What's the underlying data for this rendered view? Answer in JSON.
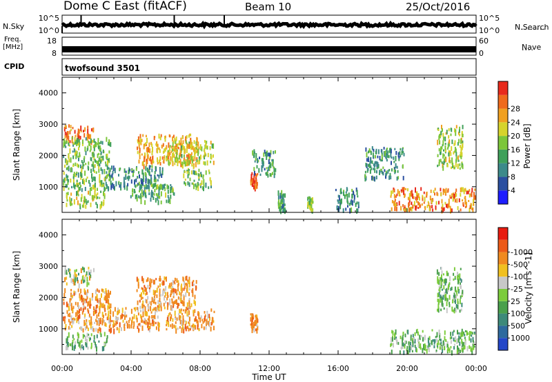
{
  "header": {
    "station": "Dome C East (fitACF)",
    "beam": "Beam 10",
    "date": "25/Oct/2016"
  },
  "side_labels": {
    "nsky": "N.Sky",
    "nsearch": "N.Search",
    "freq_line1": "Freq.",
    "freq_line2": "[MHz]",
    "nave": "Nave",
    "cpid": "CPID"
  },
  "chart_data": [
    {
      "type": "line",
      "name": "noise-panel",
      "left_ticks": [
        "10^5",
        "10^0"
      ],
      "right_ticks": [
        "10^5",
        "10^0"
      ],
      "ylabel_left": "N.Sky",
      "ylabel_right": "N.Search"
    },
    {
      "type": "line",
      "name": "freq-nave-panel",
      "left_ticks": [
        18,
        8
      ],
      "right_ticks": [
        60,
        0
      ],
      "ylabel_left": "Freq. [MHz]",
      "ylabel_right": "Nave",
      "freq_approx_mhz": 10.2
    },
    {
      "type": "table",
      "name": "cpid-panel",
      "program": "twofsound 3501"
    },
    {
      "type": "heatmap",
      "name": "power-panel",
      "ylabel": "Slant Range [km]",
      "yticks": [
        1000,
        2000,
        3000,
        4000
      ],
      "ylim": [
        180,
        4500
      ],
      "xlim_hours": [
        0,
        24
      ],
      "colorbar_label": "Power [dB]",
      "colorbar_ticks": [
        "4",
        "8",
        "12",
        "16",
        "20",
        "24",
        "28"
      ],
      "colorbar_colors": [
        "#1d1dff",
        "#2a4fa0",
        "#3c8a8a",
        "#3fa05a",
        "#7cc63a",
        "#d6d32c",
        "#f0a020",
        "#ef6a1c",
        "#e82a1c"
      ],
      "echo_regions": [
        {
          "t": [
            0.1,
            1.8
          ],
          "r": [
            2450,
            3000
          ],
          "intensity": 0.85
        },
        {
          "t": [
            0.0,
            2.8
          ],
          "r": [
            950,
            2600
          ],
          "intensity": 0.45
        },
        {
          "t": [
            0.2,
            2.5
          ],
          "r": [
            420,
            900
          ],
          "intensity": 0.55
        },
        {
          "t": [
            2.5,
            5.8
          ],
          "r": [
            1000,
            1700
          ],
          "intensity": 0.3
        },
        {
          "t": [
            3.8,
            6.5
          ],
          "r": [
            550,
            1100
          ],
          "intensity": 0.4
        },
        {
          "t": [
            4.3,
            7.8
          ],
          "r": [
            1700,
            2700
          ],
          "intensity": 0.75
        },
        {
          "t": [
            6.0,
            8.8
          ],
          "r": [
            1800,
            2500
          ],
          "intensity": 0.6
        },
        {
          "t": [
            7.0,
            8.6
          ],
          "r": [
            1000,
            1600
          ],
          "intensity": 0.45
        },
        {
          "t": [
            10.9,
            11.3
          ],
          "r": [
            1000,
            1500
          ],
          "intensity": 0.95
        },
        {
          "t": [
            11.0,
            12.4
          ],
          "r": [
            1400,
            2200
          ],
          "intensity": 0.35
        },
        {
          "t": [
            12.5,
            12.9
          ],
          "r": [
            250,
            900
          ],
          "intensity": 0.35
        },
        {
          "t": [
            14.2,
            14.5
          ],
          "r": [
            300,
            700
          ],
          "intensity": 0.5
        },
        {
          "t": [
            15.8,
            17.2
          ],
          "r": [
            300,
            1000
          ],
          "intensity": 0.3
        },
        {
          "t": [
            19.0,
            24.0
          ],
          "r": [
            300,
            1000
          ],
          "intensity": 0.8
        },
        {
          "t": [
            21.7,
            23.2
          ],
          "r": [
            1600,
            3000
          ],
          "intensity": 0.55
        },
        {
          "t": [
            17.5,
            19.8
          ],
          "r": [
            1300,
            2300
          ],
          "intensity": 0.3
        }
      ]
    },
    {
      "type": "heatmap",
      "name": "velocity-panel",
      "ylabel": "Slant Range [km]",
      "yticks": [
        1000,
        2000,
        3000,
        4000
      ],
      "ylim": [
        180,
        4500
      ],
      "xlim_hours": [
        0,
        24
      ],
      "xticks": [
        "00:00",
        "04:00",
        "08:00",
        "12:00",
        "16:00",
        "20:00",
        "00:00"
      ],
      "xlabel": "Time UT",
      "colorbar_label": "Velocity [m s^-1]",
      "colorbar_ticks": [
        "1000",
        "500",
        "100",
        "25",
        "-25",
        "-100",
        "-500",
        "-1000"
      ],
      "colorbar_colors": [
        "#2346c8",
        "#2e6a9e",
        "#3d8a7a",
        "#4aa04c",
        "#7ccc3c",
        "#c8c8c8",
        "#f0c020",
        "#f08a20",
        "#ec5a18",
        "#e81c10"
      ],
      "echo_regions": [
        {
          "t": [
            0.1,
            1.8
          ],
          "r": [
            2450,
            3000
          ],
          "vel": "mixed"
        },
        {
          "t": [
            0.0,
            2.8
          ],
          "r": [
            1000,
            2300
          ],
          "vel": "negative"
        },
        {
          "t": [
            0.2,
            2.6
          ],
          "r": [
            420,
            900
          ],
          "vel": "positive"
        },
        {
          "t": [
            2.6,
            5.6
          ],
          "r": [
            1000,
            1700
          ],
          "vel": "negative"
        },
        {
          "t": [
            4.3,
            7.8
          ],
          "r": [
            1700,
            2700
          ],
          "vel": "negative"
        },
        {
          "t": [
            6.0,
            8.8
          ],
          "r": [
            1000,
            1700
          ],
          "vel": "negative"
        },
        {
          "t": [
            10.9,
            11.3
          ],
          "r": [
            1000,
            1500
          ],
          "vel": "negative"
        },
        {
          "t": [
            19.0,
            24.0
          ],
          "r": [
            300,
            1000
          ],
          "vel": "positive"
        },
        {
          "t": [
            21.7,
            23.2
          ],
          "r": [
            1600,
            3000
          ],
          "vel": "positive"
        }
      ]
    }
  ]
}
